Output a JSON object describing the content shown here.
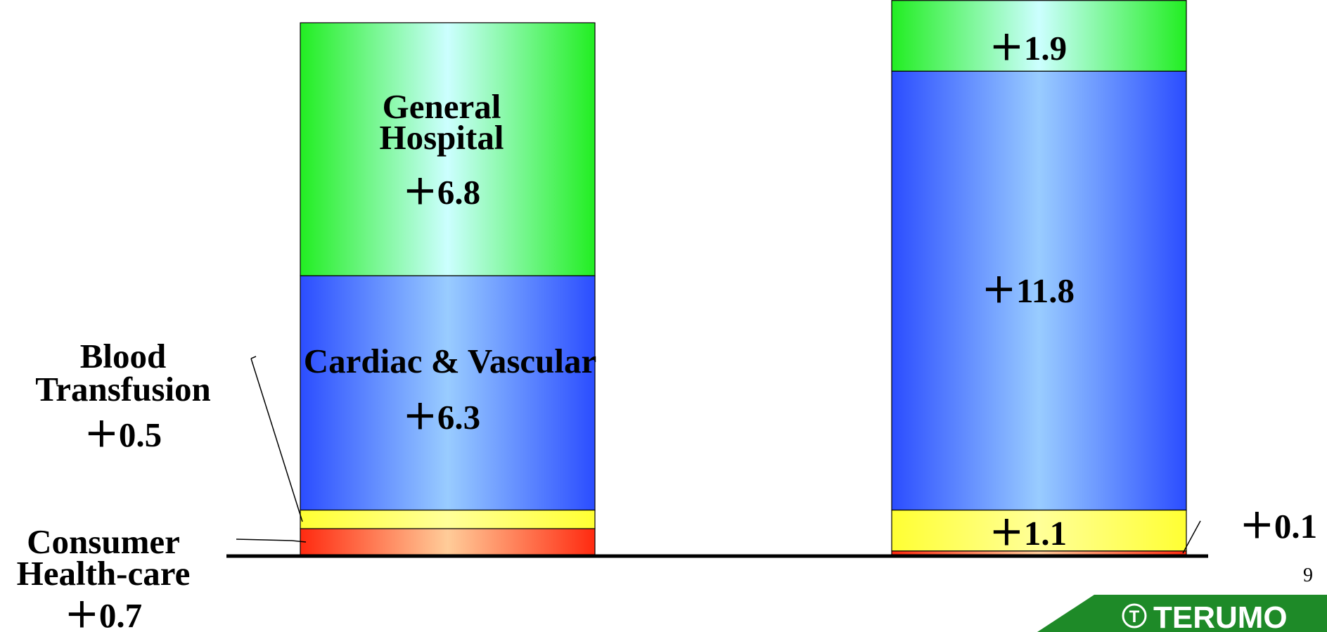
{
  "chart_data": {
    "type": "bar",
    "stacked": true,
    "orientation": "vertical",
    "categories": [
      "",
      ""
    ],
    "series": [
      {
        "name": "Consumer Health-care",
        "values": [
          0.7,
          0.1
        ],
        "value_labels": [
          "＋0.7",
          "＋0.1"
        ],
        "color": "#ff2a10"
      },
      {
        "name": "Blood Transfusion",
        "values": [
          0.5,
          1.1
        ],
        "value_labels": [
          "＋0.5",
          "＋1.1"
        ],
        "color": "#ffff40"
      },
      {
        "name": "Cardiac & Vascular",
        "values": [
          6.3,
          11.8
        ],
        "value_labels": [
          "＋6.3",
          "＋11.8"
        ],
        "color": "#2b4dff"
      },
      {
        "name": "General Hospital",
        "values": [
          6.8,
          1.9
        ],
        "value_labels": [
          "＋6.8",
          "＋1.9"
        ],
        "color": "#22ee22"
      }
    ],
    "title": "",
    "xlabel": "",
    "ylabel": "",
    "grid": false,
    "legend": "none",
    "ylim": [
      0,
      15
    ]
  },
  "labels": {
    "general_hospital_line1": "General",
    "general_hospital_line2": "Hospital",
    "cardiac_vascular": "Cardiac & Vascular",
    "blood_line1": "Blood",
    "blood_line2": "Transfusion",
    "consumer_line1": "Consumer",
    "consumer_line2": "Health-care"
  },
  "page_number": "9",
  "logo": {
    "text": "TERUMO",
    "color": "#1e8a28"
  }
}
